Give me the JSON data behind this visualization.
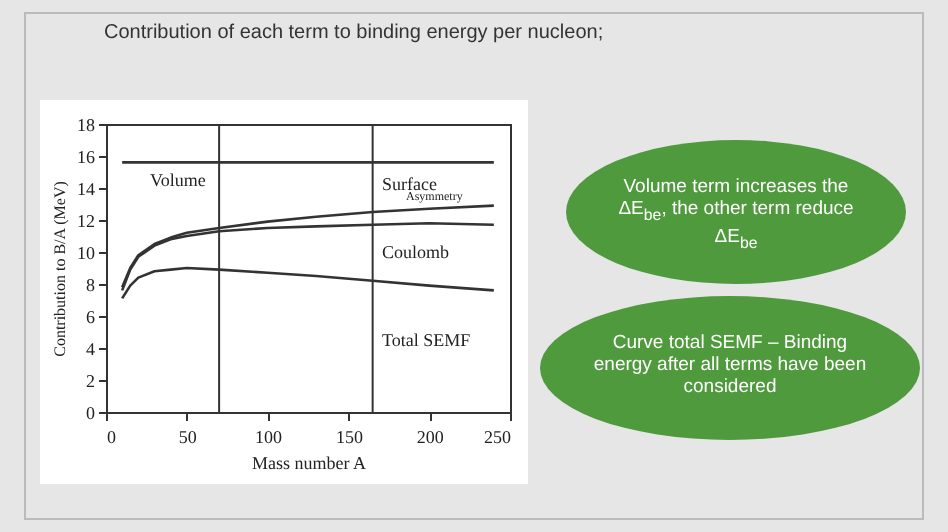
{
  "chart_data": {
    "type": "line",
    "title": "Contribution of each term to binding energy per nucleon;",
    "xlabel": "Mass number A",
    "ylabel": "Contribution to B/A (MeV)",
    "xlim": [
      0,
      250
    ],
    "xticks": [
      0,
      50,
      100,
      150,
      200,
      250
    ],
    "ylim": [
      0,
      18
    ],
    "yticks": [
      0,
      2,
      4,
      6,
      8,
      10,
      12,
      14,
      16,
      18
    ],
    "grid": false,
    "marker": "none",
    "line_style": "solid",
    "series": [
      {
        "color": "#333333",
        "x": [
          10,
          240
        ],
        "values": [
          15.6,
          15.6
        ]
      },
      {
        "color": "#333333",
        "x": [
          10,
          15,
          20,
          30,
          40,
          50,
          70,
          100,
          130,
          165,
          200,
          240
        ],
        "values": [
          7.8,
          9.0,
          9.8,
          10.5,
          10.9,
          11.2,
          11.5,
          11.9,
          12.2,
          12.5,
          12.7,
          12.9
        ]
      },
      {
        "color": "#333333",
        "x": [
          10,
          15,
          20,
          30,
          40,
          50,
          70,
          100,
          130,
          165,
          200,
          240
        ],
        "values": [
          7.6,
          8.9,
          9.7,
          10.4,
          10.8,
          11.0,
          11.3,
          11.5,
          11.6,
          11.7,
          11.8,
          11.7
        ]
      },
      {
        "color": "#333333",
        "x": [
          10,
          15,
          20,
          30,
          40,
          50,
          70,
          100,
          130,
          165,
          200,
          240
        ],
        "values": [
          7.1,
          7.9,
          8.4,
          8.8,
          8.9,
          9.0,
          8.9,
          8.7,
          8.5,
          8.2,
          7.9,
          7.6
        ]
      }
    ],
    "ref_lines": [
      {
        "axis": "x",
        "value": 70,
        "color": "#333333"
      },
      {
        "axis": "x",
        "value": 165,
        "color": "#333333"
      }
    ],
    "annotations": [
      "Volume",
      "Surface",
      "Asymmetry",
      "Coulomb",
      "Total SEMF",
      "Volume term increases the ΔE$_{be}$, the other term reduce ΔE$_{be}$",
      "Curve total SEMF – Binding energy after all terms have been considered"
    ]
  }
}
